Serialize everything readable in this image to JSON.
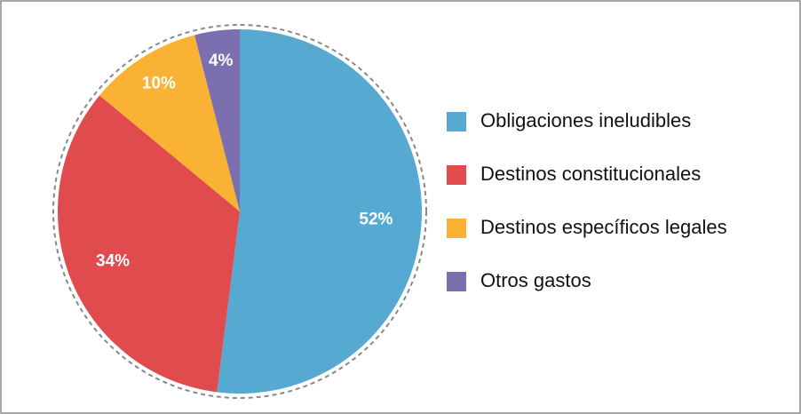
{
  "chart_data": {
    "type": "pie",
    "categories": [
      "Obligaciones ineludibles",
      "Destinos constitucionales",
      "Destinos específicos legales",
      "Otros gastos"
    ],
    "values": [
      52,
      34,
      10,
      4
    ],
    "value_labels": [
      "52%",
      "34%",
      "10%",
      "4%"
    ],
    "colors": [
      "#56a9d1",
      "#e04b4e",
      "#f9b233",
      "#7b6fb0"
    ],
    "legend": "right"
  }
}
